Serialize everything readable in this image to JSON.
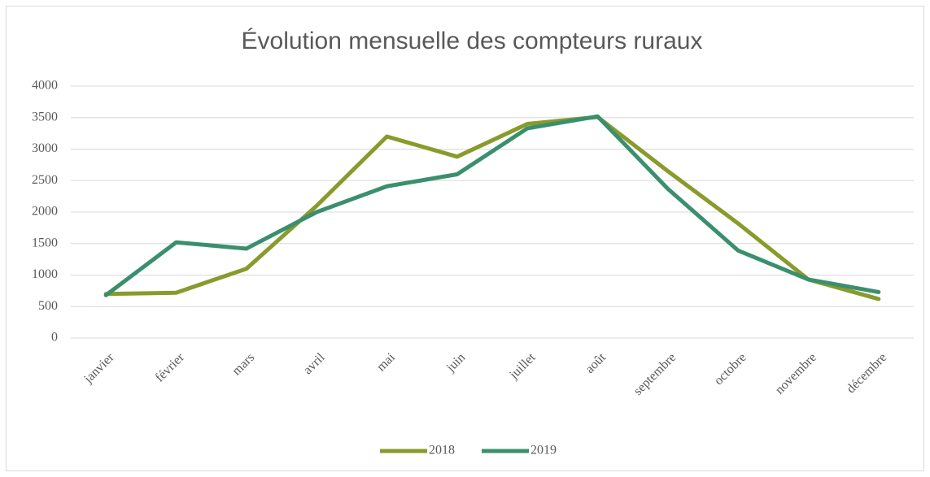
{
  "chart_data": {
    "type": "line",
    "title": "Évolution mensuelle des compteurs ruraux",
    "categories": [
      "janvier",
      "février",
      "mars",
      "avril",
      "mai",
      "juin",
      "juillet",
      "août",
      "septembre",
      "octobre",
      "novembre",
      "décembre"
    ],
    "series": [
      {
        "name": "2018",
        "color": "#8a9a2b",
        "values": [
          700,
          720,
          1100,
          2100,
          3200,
          2880,
          3400,
          3510,
          2650,
          1820,
          930,
          620
        ]
      },
      {
        "name": "2019",
        "color": "#3a8f6e",
        "values": [
          680,
          1520,
          1420,
          2000,
          2410,
          2600,
          3330,
          3520,
          2370,
          1390,
          930,
          730
        ]
      }
    ],
    "ylim": [
      0,
      4000
    ],
    "yticks": [
      0,
      500,
      1000,
      1500,
      2000,
      2500,
      3000,
      3500,
      4000
    ],
    "grid": true,
    "legend": "bottom"
  }
}
